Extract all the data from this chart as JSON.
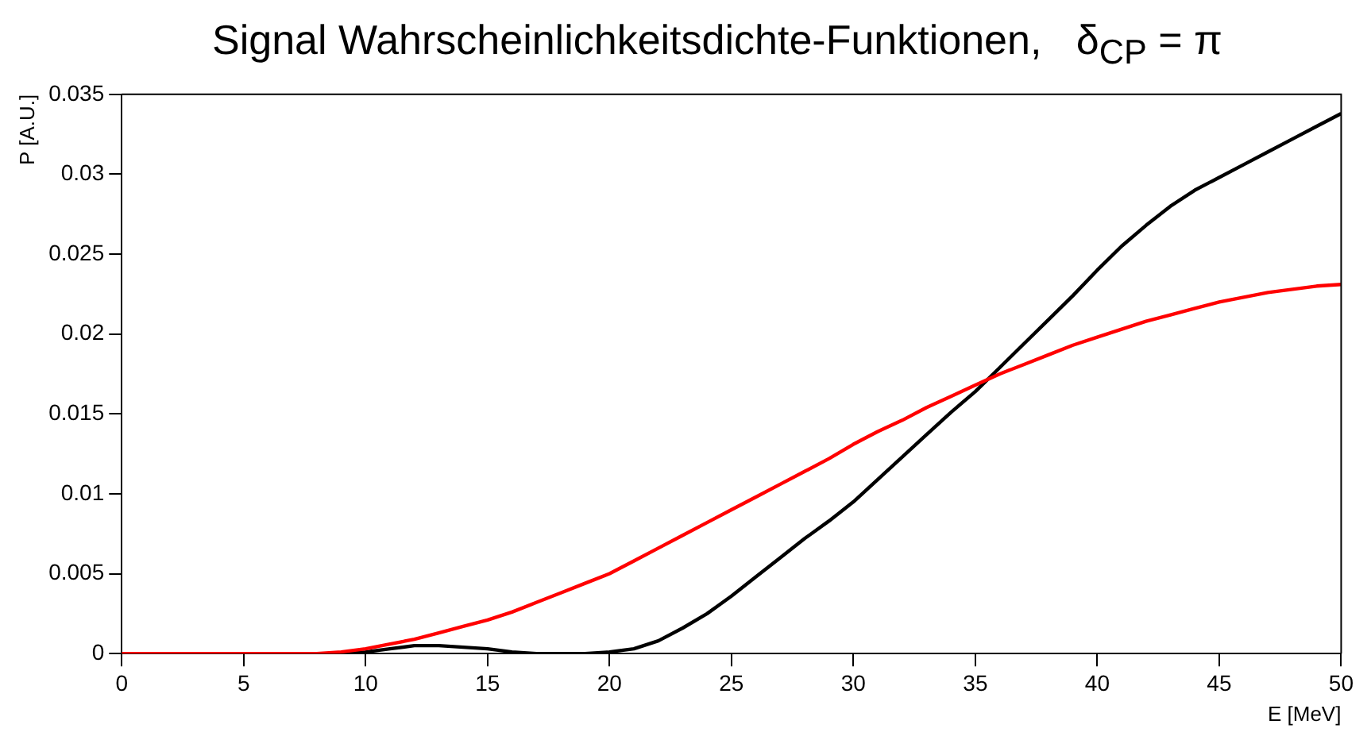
{
  "chart_data": {
    "type": "line",
    "title": "Signal Wahrscheinlichkeitsdichte-Funktionen,   δ$_{CP}$ = π",
    "xlabel": "E [MeV]",
    "ylabel": "P [A.U.]",
    "x": [
      0,
      1,
      2,
      3,
      4,
      5,
      6,
      7,
      8,
      9,
      10,
      11,
      12,
      13,
      14,
      15,
      16,
      17,
      18,
      19,
      20,
      21,
      22,
      23,
      24,
      25,
      26,
      27,
      28,
      29,
      30,
      31,
      32,
      33,
      34,
      35,
      36,
      37,
      38,
      39,
      40,
      41,
      42,
      43,
      44,
      45,
      46,
      47,
      48,
      49,
      50
    ],
    "series": [
      {
        "color": "#ff0000",
        "values": [
          0,
          0,
          0,
          0,
          0,
          0,
          0,
          0,
          0,
          0.0001,
          0.0003,
          0.0006,
          0.0009,
          0.0013,
          0.0017,
          0.0021,
          0.0026,
          0.0032,
          0.0038,
          0.0044,
          0.005,
          0.0058,
          0.0066,
          0.0074,
          0.0082,
          0.009,
          0.0098,
          0.0106,
          0.0114,
          0.0122,
          0.0131,
          0.0139,
          0.0146,
          0.0154,
          0.0161,
          0.0168,
          0.0175,
          0.0181,
          0.0187,
          0.0193,
          0.0198,
          0.0203,
          0.0208,
          0.0212,
          0.0216,
          0.022,
          0.0223,
          0.0226,
          0.0228,
          0.023,
          0.0231
        ]
      },
      {
        "color": "#000000",
        "values": [
          0,
          0,
          0,
          0,
          0,
          0,
          0,
          0,
          0,
          0,
          0.0001,
          0.0003,
          0.0005,
          0.0005,
          0.0004,
          0.0003,
          0.0001,
          0,
          0,
          0,
          0.0001,
          0.0003,
          0.0008,
          0.0016,
          0.0025,
          0.0036,
          0.0048,
          0.006,
          0.0072,
          0.0083,
          0.0095,
          0.0109,
          0.0123,
          0.0137,
          0.0151,
          0.0164,
          0.0179,
          0.0194,
          0.0209,
          0.0224,
          0.024,
          0.0255,
          0.0268,
          0.028,
          0.029,
          0.0298,
          0.0306,
          0.0314,
          0.0322,
          0.033,
          0.0338
        ]
      }
    ],
    "xlim": [
      0,
      50
    ],
    "xticks": [
      0,
      5,
      10,
      15,
      20,
      25,
      30,
      35,
      40,
      45,
      50
    ],
    "ylim": [
      0,
      0.035
    ],
    "yticks": [
      0,
      0.005,
      0.01,
      0.015,
      0.02,
      0.025,
      0.03,
      0.035
    ],
    "grid": false,
    "legend": false,
    "marker": "none",
    "line_style": "solid"
  }
}
